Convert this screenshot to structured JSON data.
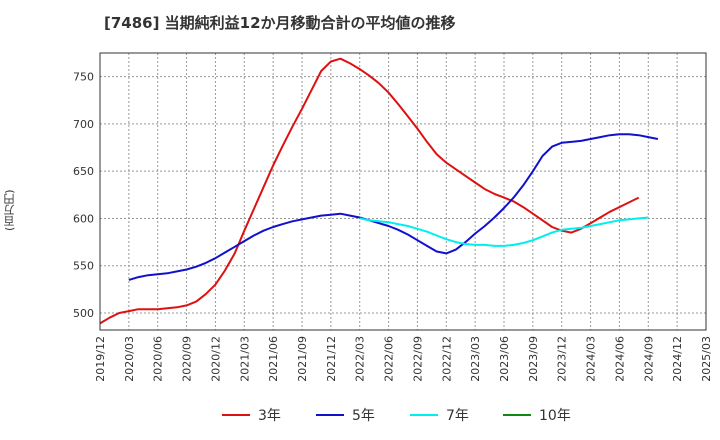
{
  "title": "[7486]  当期純利益12か月移動合計の平均値の推移",
  "chart_data": {
    "type": "line",
    "title": "[7486]  当期純利益12か月移動合計の平均値の推移",
    "ylabel": "(百万円)",
    "xlabel": "",
    "ylim": [
      482,
      775
    ],
    "yticks": [
      500,
      550,
      600,
      650,
      700,
      750
    ],
    "x_start": "2019-12",
    "x_end": "2025-03",
    "xticks": [
      "2019/12",
      "2020/03",
      "2020/06",
      "2020/09",
      "2020/12",
      "2021/03",
      "2021/06",
      "2021/09",
      "2021/12",
      "2022/03",
      "2022/06",
      "2022/09",
      "2022/12",
      "2023/03",
      "2023/06",
      "2023/09",
      "2023/12",
      "2024/03",
      "2024/06",
      "2024/09",
      "2024/12",
      "2025/03"
    ],
    "grid": true,
    "legend_position": "bottom",
    "series": [
      {
        "name": "3年",
        "color": "#dd1111",
        "start": "2019-12",
        "values": [
          489,
          495,
          500,
          502,
          504,
          504,
          504,
          505,
          506,
          508,
          512,
          520,
          530,
          545,
          563,
          587,
          610,
          633,
          656,
          677,
          697,
          716,
          736,
          756,
          766,
          769,
          764,
          758,
          751,
          743,
          733,
          721,
          708,
          695,
          681,
          668,
          659,
          652,
          645,
          638,
          631,
          626,
          622,
          618,
          612,
          605,
          598,
          591,
          587,
          585,
          589,
          595,
          601,
          607,
          612,
          617,
          622
        ]
      },
      {
        "name": "5年",
        "color": "#1111cc",
        "start": "2020-03",
        "values": [
          535,
          538,
          540,
          541,
          542,
          544,
          546,
          549,
          553,
          558,
          564,
          570,
          576,
          582,
          587,
          591,
          594,
          597,
          599,
          601,
          603,
          604,
          605,
          603,
          601,
          598,
          595,
          592,
          588,
          583,
          577,
          571,
          565,
          563,
          567,
          575,
          584,
          592,
          601,
          611,
          622,
          635,
          650,
          666,
          676,
          680,
          681,
          682,
          684,
          686,
          688,
          689,
          689,
          688,
          686,
          684
        ]
      },
      {
        "name": "7年",
        "color": "#00eeee",
        "start": "2022-03",
        "values": [
          600,
          598,
          597,
          596,
          594,
          592,
          589,
          586,
          582,
          578,
          575,
          573,
          572,
          572,
          571,
          571,
          572,
          574,
          577,
          581,
          585,
          588,
          589,
          590,
          592,
          594,
          596,
          598,
          599,
          600,
          601
        ]
      },
      {
        "name": "10年",
        "color": "#118811",
        "start": "2019-12",
        "values": []
      }
    ]
  }
}
